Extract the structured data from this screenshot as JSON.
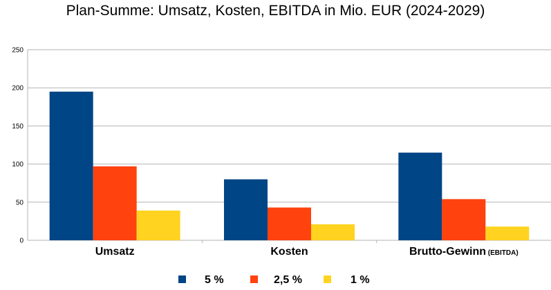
{
  "chart_data": {
    "type": "bar",
    "title": "Plan-Summe: Umsatz, Kosten, EBITDA in Mio. EUR (2024-2029)",
    "categories": [
      {
        "label": "Umsatz",
        "sublabel": ""
      },
      {
        "label": "Kosten",
        "sublabel": ""
      },
      {
        "label": "Brutto-Gewinn",
        "sublabel": "(EBITDA)"
      }
    ],
    "series": [
      {
        "name": "5 %",
        "color": "#004586",
        "values": [
          195,
          80,
          115
        ]
      },
      {
        "name": "2,5 %",
        "color": "#ff420e",
        "values": [
          97,
          43,
          54
        ]
      },
      {
        "name": "1 %",
        "color": "#ffd320",
        "values": [
          39,
          21,
          18
        ]
      }
    ],
    "ylim": [
      0,
      250
    ],
    "yticks": [
      "0",
      "50",
      "100",
      "150",
      "200",
      "250"
    ],
    "grid": true,
    "legend_position": "bottom"
  }
}
